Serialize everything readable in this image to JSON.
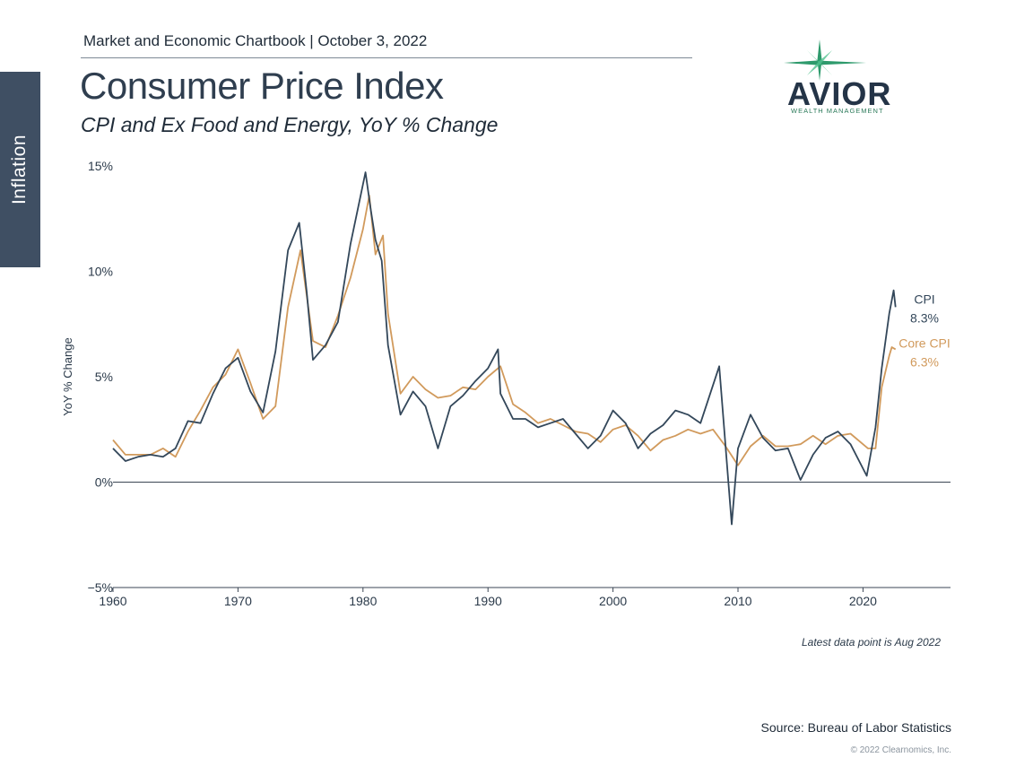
{
  "header": {
    "chartbook": "Market and Economic Chartbook | October 3, 2022",
    "title": "Consumer Price Index",
    "subtitle": "CPI and Ex Food and Energy, YoY % Change",
    "section_tab": "Inflation"
  },
  "logo": {
    "name": "AVIOR",
    "tagline": "WEALTH MANAGEMENT",
    "star_icon": "north-star-icon"
  },
  "footer": {
    "note": "Latest data point is Aug 2022",
    "source": "Source: Bureau of Labor Statistics",
    "copyright": "© 2022 Clearnomics, Inc."
  },
  "colors": {
    "cpi": "#33475a",
    "core": "#d19a5c",
    "tab": "#3f4f63",
    "logo_star": "#2e9a6c"
  },
  "chart_data": {
    "type": "line",
    "title": "Consumer Price Index",
    "subtitle": "CPI and Ex Food and Energy, YoY % Change",
    "ylabel": "YoY % Change",
    "xlabel": "",
    "xlim": [
      1960,
      2027
    ],
    "ylim": [
      -5,
      15
    ],
    "x_ticks": [
      1960,
      1970,
      1980,
      1990,
      2000,
      2010,
      2020
    ],
    "y_ticks": [
      15,
      10,
      5,
      0,
      -5
    ],
    "y_tick_labels": [
      "15%",
      "10%",
      "5%",
      "0%",
      "−5%"
    ],
    "grid": false,
    "legend": "direct labels at line ends (right)",
    "series": [
      {
        "name": "CPI",
        "end_label": "8.3%",
        "points": [
          [
            1960,
            1.6
          ],
          [
            1961,
            1.0
          ],
          [
            1962,
            1.2
          ],
          [
            1963,
            1.3
          ],
          [
            1964,
            1.2
          ],
          [
            1965,
            1.6
          ],
          [
            1966,
            2.9
          ],
          [
            1967,
            2.8
          ],
          [
            1968,
            4.2
          ],
          [
            1969,
            5.4
          ],
          [
            1970,
            5.9
          ],
          [
            1971,
            4.3
          ],
          [
            1972,
            3.3
          ],
          [
            1973,
            6.2
          ],
          [
            1974,
            11.0
          ],
          [
            1974.9,
            12.3
          ],
          [
            1975.5,
            9.0
          ],
          [
            1976,
            5.8
          ],
          [
            1977,
            6.5
          ],
          [
            1978,
            7.6
          ],
          [
            1979,
            11.3
          ],
          [
            1980.2,
            14.7
          ],
          [
            1980.6,
            13.0
          ],
          [
            1981,
            11.5
          ],
          [
            1981.5,
            10.5
          ],
          [
            1982,
            6.5
          ],
          [
            1983,
            3.2
          ],
          [
            1984,
            4.3
          ],
          [
            1985,
            3.6
          ],
          [
            1986,
            1.6
          ],
          [
            1987,
            3.6
          ],
          [
            1988,
            4.1
          ],
          [
            1989,
            4.8
          ],
          [
            1990,
            5.4
          ],
          [
            1990.8,
            6.3
          ],
          [
            1991,
            4.2
          ],
          [
            1992,
            3.0
          ],
          [
            1993,
            3.0
          ],
          [
            1994,
            2.6
          ],
          [
            1995,
            2.8
          ],
          [
            1996,
            3.0
          ],
          [
            1997,
            2.3
          ],
          [
            1998,
            1.6
          ],
          [
            1999,
            2.2
          ],
          [
            2000,
            3.4
          ],
          [
            2001,
            2.8
          ],
          [
            2002,
            1.6
          ],
          [
            2003,
            2.3
          ],
          [
            2004,
            2.7
          ],
          [
            2005,
            3.4
          ],
          [
            2006,
            3.2
          ],
          [
            2007,
            2.8
          ],
          [
            2008.5,
            5.5
          ],
          [
            2009.5,
            -2.0
          ],
          [
            2010,
            1.6
          ],
          [
            2011,
            3.2
          ],
          [
            2012,
            2.1
          ],
          [
            2013,
            1.5
          ],
          [
            2014,
            1.6
          ],
          [
            2015,
            0.1
          ],
          [
            2016,
            1.3
          ],
          [
            2017,
            2.1
          ],
          [
            2018,
            2.4
          ],
          [
            2019,
            1.8
          ],
          [
            2020.3,
            0.3
          ],
          [
            2021,
            2.6
          ],
          [
            2021.5,
            5.4
          ],
          [
            2022.1,
            8.0
          ],
          [
            2022.45,
            9.1
          ],
          [
            2022.6,
            8.3
          ]
        ]
      },
      {
        "name": "Core CPI",
        "end_label": "6.3%",
        "points": [
          [
            1960,
            2.0
          ],
          [
            1961,
            1.3
          ],
          [
            1962,
            1.3
          ],
          [
            1963,
            1.3
          ],
          [
            1964,
            1.6
          ],
          [
            1965,
            1.2
          ],
          [
            1966,
            2.4
          ],
          [
            1967,
            3.4
          ],
          [
            1968,
            4.5
          ],
          [
            1969,
            5.1
          ],
          [
            1970,
            6.3
          ],
          [
            1971,
            4.7
          ],
          [
            1972,
            3.0
          ],
          [
            1973,
            3.6
          ],
          [
            1974,
            8.3
          ],
          [
            1975,
            11.0
          ],
          [
            1976,
            6.7
          ],
          [
            1977,
            6.4
          ],
          [
            1978,
            7.9
          ],
          [
            1979,
            9.7
          ],
          [
            1980,
            12.0
          ],
          [
            1980.5,
            13.6
          ],
          [
            1981,
            10.8
          ],
          [
            1981.6,
            11.7
          ],
          [
            1982,
            8.0
          ],
          [
            1983,
            4.2
          ],
          [
            1984,
            5.0
          ],
          [
            1985,
            4.4
          ],
          [
            1986,
            4.0
          ],
          [
            1987,
            4.1
          ],
          [
            1988,
            4.5
          ],
          [
            1989,
            4.4
          ],
          [
            1990,
            5.0
          ],
          [
            1991,
            5.5
          ],
          [
            1992,
            3.7
          ],
          [
            1993,
            3.3
          ],
          [
            1994,
            2.8
          ],
          [
            1995,
            3.0
          ],
          [
            1996,
            2.7
          ],
          [
            1997,
            2.4
          ],
          [
            1998,
            2.3
          ],
          [
            1999,
            1.9
          ],
          [
            2000,
            2.5
          ],
          [
            2001,
            2.7
          ],
          [
            2002,
            2.2
          ],
          [
            2003,
            1.5
          ],
          [
            2004,
            2.0
          ],
          [
            2005,
            2.2
          ],
          [
            2006,
            2.5
          ],
          [
            2007,
            2.3
          ],
          [
            2008,
            2.5
          ],
          [
            2009,
            1.7
          ],
          [
            2010,
            0.8
          ],
          [
            2011,
            1.7
          ],
          [
            2012,
            2.2
          ],
          [
            2013,
            1.7
          ],
          [
            2014,
            1.7
          ],
          [
            2015,
            1.8
          ],
          [
            2016,
            2.2
          ],
          [
            2017,
            1.8
          ],
          [
            2018,
            2.2
          ],
          [
            2019,
            2.3
          ],
          [
            2020.4,
            1.6
          ],
          [
            2021,
            1.6
          ],
          [
            2021.5,
            4.5
          ],
          [
            2022.1,
            6.0
          ],
          [
            2022.3,
            6.4
          ],
          [
            2022.6,
            6.3
          ]
        ]
      }
    ]
  }
}
